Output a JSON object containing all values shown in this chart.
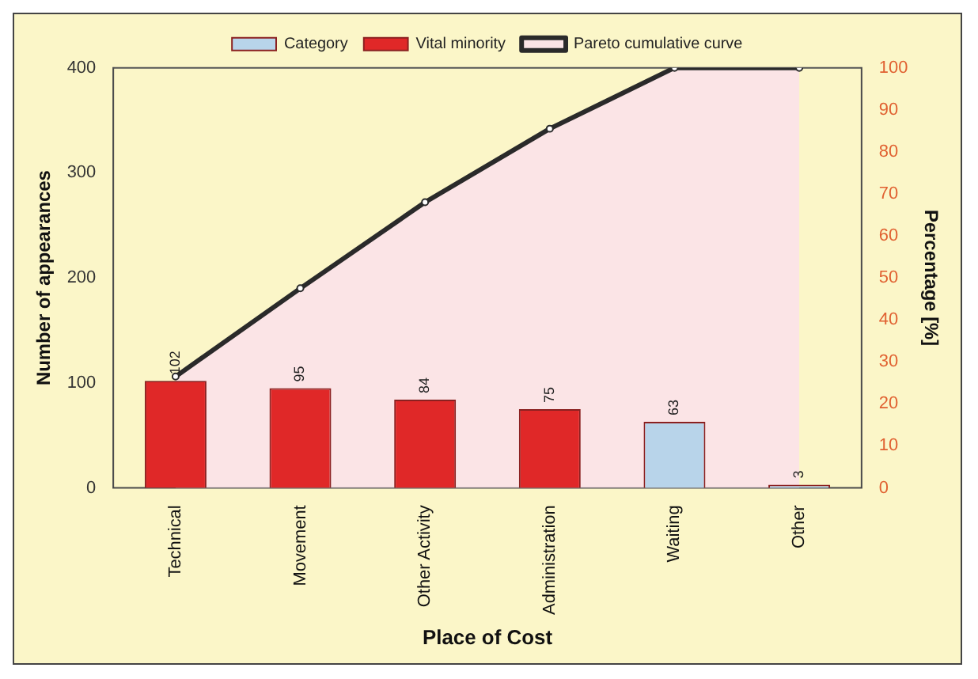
{
  "chart_data": {
    "type": "bar",
    "xlabel": "Place of Cost",
    "ylabel": "Number of appearances",
    "y2label": "Percentage [%]",
    "categories": [
      "Technical",
      "Movement",
      "Other Activity",
      "Administration",
      "Waiting",
      "Other"
    ],
    "series": [
      {
        "name": "Category",
        "color": "#b8d4ea",
        "values": [
          null,
          null,
          null,
          null,
          63,
          3
        ],
        "value_labels": [
          null,
          null,
          null,
          null,
          "63",
          "3"
        ]
      },
      {
        "name": "Vital minority",
        "color": "#e02828",
        "values": [
          102,
          95,
          84,
          75,
          null,
          null
        ],
        "value_labels": [
          "102",
          "95",
          "84",
          "75",
          null,
          null
        ]
      },
      {
        "name": "Pareto cumulative curve",
        "type": "area",
        "axis": "y2",
        "color": "#2a2a2a",
        "values": [
          26.5,
          47.5,
          68,
          85.5,
          100,
          100
        ]
      }
    ],
    "stacked": true,
    "ylim": [
      0,
      400
    ],
    "yticks": [
      0,
      100,
      200,
      300,
      400
    ],
    "y2lim": [
      0,
      100
    ],
    "y2ticks": [
      0,
      10,
      20,
      30,
      40,
      50,
      60,
      70,
      80,
      90,
      100
    ],
    "legend": "top",
    "grid": false
  }
}
